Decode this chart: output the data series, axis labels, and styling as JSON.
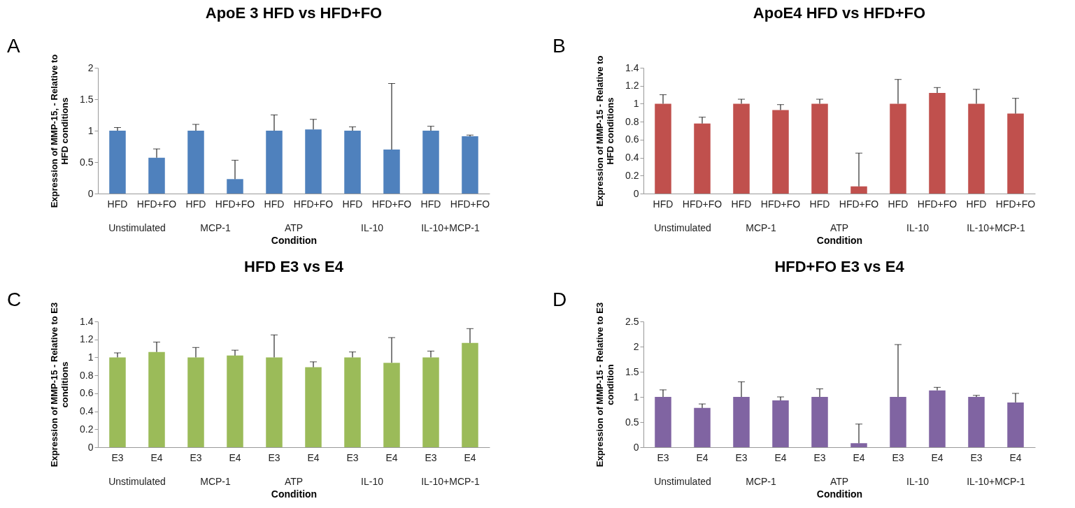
{
  "chart_data": [
    {
      "type": "bar",
      "title": "ApoE 3 HFD vs HFD+FO",
      "xlabel": "Condition",
      "ylabel": "Expression of MMP-15, - Relative to\nHFD conditions",
      "categories": [
        "HFD",
        "HFD+FO",
        "HFD",
        "HFD+FO",
        "HFD",
        "HFD+FO",
        "HFD",
        "HFD+FO",
        "HFD",
        "HFD+FO"
      ],
      "color": "#4f81bd",
      "values": [
        1,
        0.57,
        1,
        0.23,
        1,
        1.02,
        1,
        0.7,
        1,
        0.91
      ],
      "errors": [
        [
          1,
          1.05
        ],
        [
          0.57,
          0.71
        ],
        [
          1,
          1.1
        ],
        [
          0.23,
          0.53
        ],
        [
          1,
          1.25
        ],
        [
          1.02,
          1.18
        ],
        [
          1,
          1.06
        ],
        [
          0.7,
          1.75
        ],
        [
          1,
          1.07
        ],
        [
          0.91,
          0.93
        ]
      ],
      "ylim": [
        0,
        2
      ],
      "yticks": [
        0,
        0.5,
        1,
        1.5,
        2
      ],
      "annotations": [
        "A",
        "Unstimulated",
        "MCP-1",
        "ATP",
        "IL-10",
        "IL-10+MCP-1"
      ]
    },
    {
      "type": "bar",
      "title": "ApoE4 HFD vs HFD+FO",
      "xlabel": "Condition",
      "ylabel": "Expression of MMP-15 - Relative to\nHFD conditions",
      "categories": [
        "HFD",
        "HFD+FO",
        "HFD",
        "HFD+FO",
        "HFD",
        "HFD+FO",
        "HFD",
        "HFD+FO",
        "HFD",
        "HFD+FO"
      ],
      "color": "#c0504d",
      "values": [
        1,
        0.78,
        1,
        0.93,
        1,
        0.08,
        1,
        1.12,
        1,
        0.89
      ],
      "errors": [
        [
          1,
          1.1
        ],
        [
          0.78,
          0.85
        ],
        [
          1,
          1.05
        ],
        [
          0.93,
          0.99
        ],
        [
          1,
          1.05
        ],
        [
          0.08,
          0.45
        ],
        [
          1,
          1.27
        ],
        [
          1.12,
          1.18
        ],
        [
          1,
          1.16
        ],
        [
          0.89,
          1.06
        ]
      ],
      "ylim": [
        0,
        1.4
      ],
      "yticks": [
        0,
        0.2,
        0.4,
        0.6,
        0.8,
        1,
        1.2,
        1.4
      ],
      "annotations": [
        "B",
        "Unstimulated",
        "MCP-1",
        "ATP",
        "IL-10",
        "IL-10+MCP-1"
      ]
    },
    {
      "type": "bar",
      "title": "HFD E3 vs E4",
      "xlabel": "Condition",
      "ylabel": "Expression of MMP-15 - Relative to E3\nconditions",
      "categories": [
        "E3",
        "E4",
        "E3",
        "E4",
        "E3",
        "E4",
        "E3",
        "E4",
        "E3",
        "E4"
      ],
      "color": "#9bbb59",
      "values": [
        1,
        1.06,
        1,
        1.02,
        1,
        0.89,
        1,
        0.94,
        1,
        1.16
      ],
      "errors": [
        [
          1,
          1.05
        ],
        [
          1.06,
          1.17
        ],
        [
          1,
          1.11
        ],
        [
          1.02,
          1.08
        ],
        [
          1,
          1.25
        ],
        [
          0.89,
          0.95
        ],
        [
          1,
          1.06
        ],
        [
          0.94,
          1.22
        ],
        [
          1,
          1.07
        ],
        [
          1.16,
          1.32
        ]
      ],
      "ylim": [
        0,
        1.4
      ],
      "yticks": [
        0,
        0.2,
        0.4,
        0.6,
        0.8,
        1,
        1.2,
        1.4
      ],
      "annotations": [
        "C",
        "Unstimulated",
        "MCP-1",
        "ATP",
        "IL-10",
        "IL-10+MCP-1"
      ]
    },
    {
      "type": "bar",
      "title": "HFD+FO E3 vs E4",
      "xlabel": "Condition",
      "ylabel": "Expression of MMP-15 - Relative to E3\ncondition",
      "categories": [
        "E3",
        "E4",
        "E3",
        "E4",
        "E3",
        "E4",
        "E3",
        "E4",
        "E3",
        "E4"
      ],
      "color": "#8064a2",
      "values": [
        1,
        0.78,
        1,
        0.93,
        1,
        0.08,
        1,
        1.13,
        1,
        0.89
      ],
      "errors": [
        [
          1,
          1.14
        ],
        [
          0.78,
          0.86
        ],
        [
          1,
          1.3
        ],
        [
          0.93,
          1.0
        ],
        [
          1,
          1.16
        ],
        [
          0.08,
          0.46
        ],
        [
          1,
          2.04
        ],
        [
          1.13,
          1.19
        ],
        [
          1,
          1.03
        ],
        [
          0.89,
          1.07
        ]
      ],
      "ylim": [
        0,
        2.5
      ],
      "yticks": [
        0,
        0.5,
        1,
        1.5,
        2,
        2.5
      ],
      "annotations": [
        "D",
        "Unstimulated",
        "MCP-1",
        "ATP",
        "IL-10",
        "IL-10+MCP-1"
      ]
    }
  ]
}
